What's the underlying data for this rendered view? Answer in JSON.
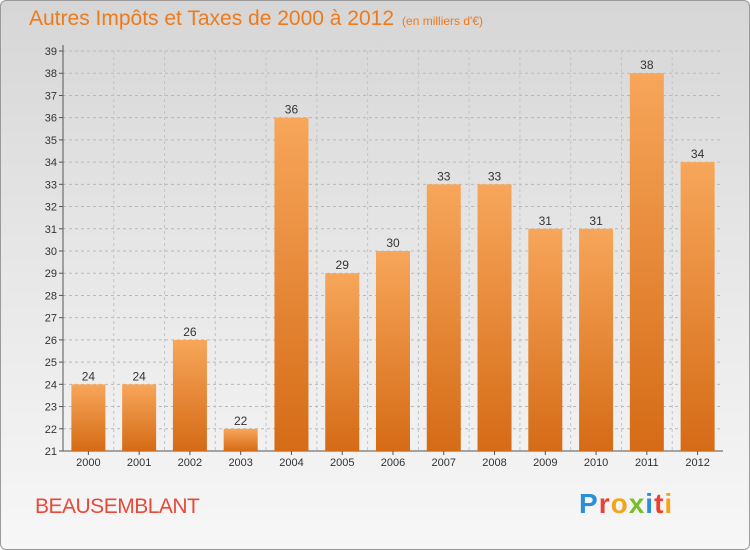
{
  "header": {
    "title": "Autres Impôts et Taxes de 2000 à 2012",
    "subtitle": "(en milliers d'€)"
  },
  "footer": {
    "commune": "BEAUSEMBLANT",
    "logo": "Proxiti"
  },
  "colors": {
    "accent": "#ee7a1c",
    "bar_top": "#f7a65a",
    "bar_bottom": "#d56b16",
    "commune": "#e8493a"
  },
  "chart_data": {
    "type": "bar",
    "title": "Autres Impôts et Taxes de 2000 à 2012",
    "subtitle": "(en milliers d'€)",
    "categories": [
      "2000",
      "2001",
      "2002",
      "2003",
      "2004",
      "2005",
      "2006",
      "2007",
      "2008",
      "2009",
      "2010",
      "2011",
      "2012"
    ],
    "values": [
      24,
      24,
      26,
      22,
      36,
      29,
      30,
      33,
      33,
      31,
      31,
      38,
      34
    ],
    "ylim": [
      21,
      39
    ],
    "yticks": [
      21,
      22,
      23,
      24,
      25,
      26,
      27,
      28,
      29,
      30,
      31,
      32,
      33,
      34,
      35,
      36,
      37,
      38,
      39
    ],
    "grid": true,
    "data_labels": true
  }
}
